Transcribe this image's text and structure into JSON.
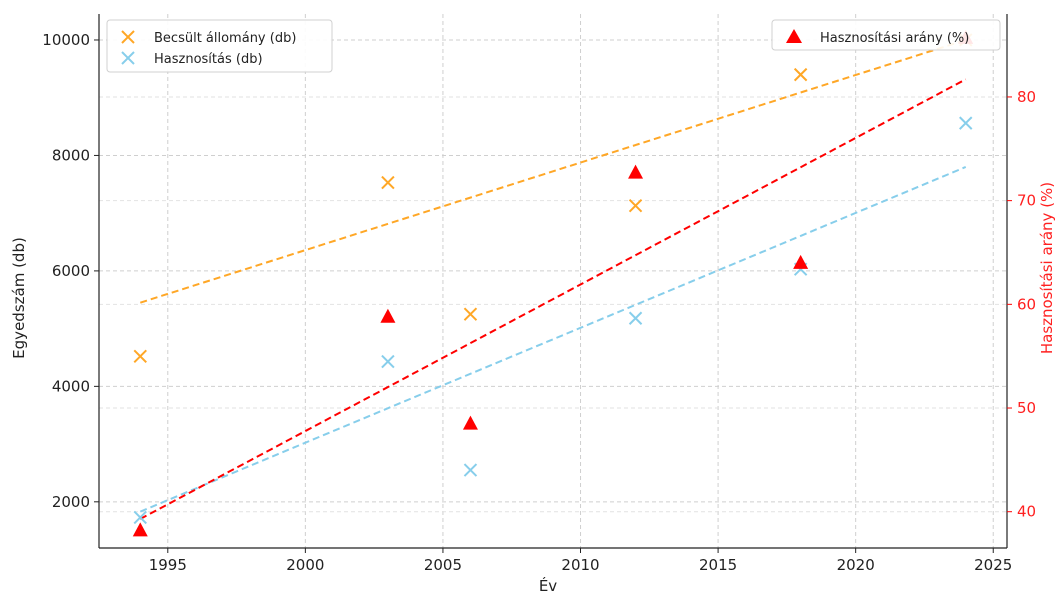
{
  "chart_data": {
    "type": "scatter",
    "x": [
      1994,
      2003,
      2006,
      2012,
      2018,
      2024
    ],
    "xlabel": "Év",
    "ylabel_left": "Egyedszám (db)",
    "ylabel_right": "Hasznosítási arány (%)",
    "xlim": [
      1992.5,
      2025.5
    ],
    "ylim_left": [
      1200,
      10450
    ],
    "ylim_right": [
      36.5,
      88
    ],
    "xticks": [
      1995,
      2000,
      2005,
      2010,
      2015,
      2020,
      2025
    ],
    "yticks_left": [
      2000,
      4000,
      6000,
      8000,
      10000
    ],
    "yticks_right": [
      40,
      50,
      60,
      70,
      80
    ],
    "grid": true,
    "series": [
      {
        "name": "Becsült állomány (db)",
        "axis": "left",
        "marker": "x",
        "color": "#FFA726",
        "values": [
          4520,
          7530,
          5250,
          7130,
          9400,
          10000
        ],
        "trend": [
          5450,
          10000
        ]
      },
      {
        "name": "Hasznosítás (db)",
        "axis": "left",
        "marker": "x",
        "color": "#87CEEB",
        "values": [
          1730,
          4430,
          2550,
          5180,
          6030,
          8560
        ],
        "trend": [
          1830,
          7800
        ]
      },
      {
        "name": "Hasznosítási arány (%)",
        "axis": "right",
        "marker": "triangle",
        "color": "#FF0000",
        "values": [
          38.2,
          58.8,
          48.5,
          72.7,
          64.0,
          85.7
        ],
        "trend": [
          39.3,
          81.7
        ]
      }
    ],
    "legend_left": "top-left",
    "legend_right": "top-right"
  }
}
